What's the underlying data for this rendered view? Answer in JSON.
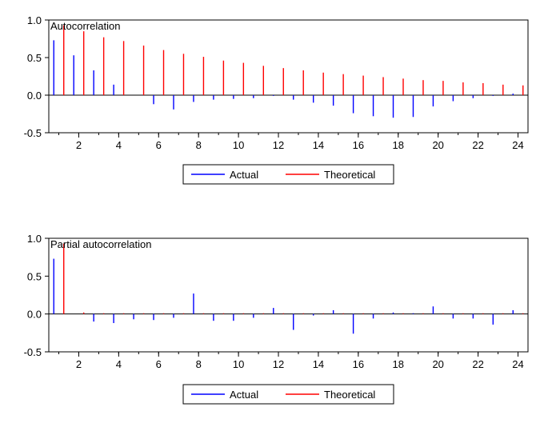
{
  "chart_data": [
    {
      "type": "bar",
      "title": "Autocorrelation",
      "xlabel": "",
      "ylabel": "",
      "xlim": [
        0.5,
        24.5
      ],
      "ylim": [
        -0.5,
        1.0
      ],
      "yticks": [
        -0.5,
        0.0,
        0.5,
        1.0
      ],
      "ytick_labels": [
        "-0.5",
        "0.0",
        "0.5",
        "1.0"
      ],
      "xticks": [
        2,
        4,
        6,
        8,
        10,
        12,
        14,
        16,
        18,
        20,
        22,
        24
      ],
      "xtick_labels": [
        "2",
        "4",
        "6",
        "8",
        "10",
        "12",
        "14",
        "16",
        "18",
        "20",
        "22",
        "24"
      ],
      "legend": "bottom-center",
      "x": [
        1,
        2,
        3,
        4,
        5,
        6,
        7,
        8,
        9,
        10,
        11,
        12,
        13,
        14,
        15,
        16,
        17,
        18,
        19,
        20,
        21,
        22,
        23,
        24
      ],
      "series": [
        {
          "name": "Actual",
          "color": "#0000ff",
          "values": [
            0.73,
            0.53,
            0.33,
            0.14,
            0.0,
            -0.12,
            -0.19,
            -0.09,
            -0.06,
            -0.05,
            -0.04,
            -0.01,
            -0.06,
            -0.1,
            -0.14,
            -0.24,
            -0.28,
            -0.3,
            -0.29,
            -0.15,
            -0.08,
            -0.04,
            -0.01,
            0.02
          ]
        },
        {
          "name": "Theoretical",
          "color": "#ff0000",
          "values": [
            0.93,
            0.85,
            0.77,
            0.72,
            0.66,
            0.6,
            0.55,
            0.51,
            0.46,
            0.43,
            0.39,
            0.36,
            0.33,
            0.3,
            0.28,
            0.26,
            0.24,
            0.22,
            0.2,
            0.19,
            0.17,
            0.16,
            0.14,
            0.13
          ]
        }
      ]
    },
    {
      "type": "bar",
      "title": "Partial autocorrelation",
      "xlabel": "",
      "ylabel": "",
      "xlim": [
        0.5,
        24.5
      ],
      "ylim": [
        -0.5,
        1.0
      ],
      "yticks": [
        -0.5,
        0.0,
        0.5,
        1.0
      ],
      "ytick_labels": [
        "-0.5",
        "0.0",
        "0.5",
        "1.0"
      ],
      "xticks": [
        2,
        4,
        6,
        8,
        10,
        12,
        14,
        16,
        18,
        20,
        22,
        24
      ],
      "xtick_labels": [
        "2",
        "4",
        "6",
        "8",
        "10",
        "12",
        "14",
        "16",
        "18",
        "20",
        "22",
        "24"
      ],
      "legend": "bottom-center",
      "x": [
        1,
        2,
        3,
        4,
        5,
        6,
        7,
        8,
        9,
        10,
        11,
        12,
        13,
        14,
        15,
        16,
        17,
        18,
        19,
        20,
        21,
        22,
        23,
        24
      ],
      "series": [
        {
          "name": "Actual",
          "color": "#0000ff",
          "values": [
            0.73,
            0.0,
            -0.1,
            -0.12,
            -0.07,
            -0.08,
            -0.05,
            0.27,
            -0.09,
            -0.09,
            -0.05,
            0.08,
            -0.21,
            -0.02,
            0.05,
            -0.26,
            -0.06,
            0.02,
            0.01,
            0.1,
            -0.06,
            -0.06,
            -0.14,
            0.05
          ]
        },
        {
          "name": "Theoretical",
          "color": "#ff0000",
          "values": [
            0.93,
            0.02,
            0.01,
            0.01,
            0.01,
            0.01,
            0.01,
            0.01,
            0.01,
            0.01,
            0.01,
            0.01,
            0.01,
            0.01,
            0.01,
            0.01,
            0.01,
            0.01,
            0.01,
            0.01,
            0.01,
            0.01,
            0.01,
            0.01
          ]
        }
      ]
    }
  ]
}
